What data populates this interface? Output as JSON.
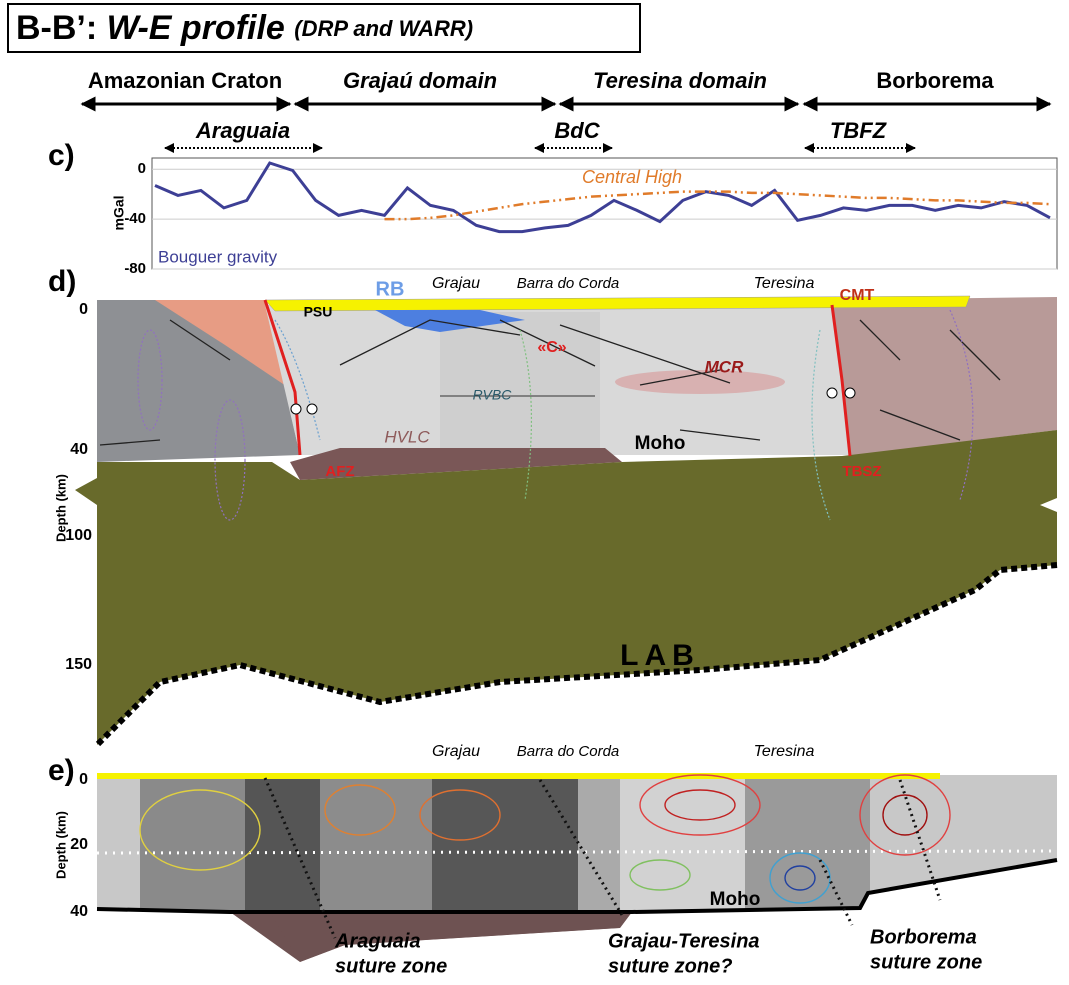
{
  "title": {
    "prefix": "B-B’:",
    "main": "W-E profile",
    "note": "(DRP and WARR)"
  },
  "domains": [
    "Amazonian Craton",
    "Grajaú domain",
    "Teresina domain",
    "Borborema"
  ],
  "zones": [
    "Araguaia",
    "BdC",
    "TBFZ"
  ],
  "panels": {
    "c": "c)",
    "d": "d)",
    "e": "e)"
  },
  "chart_data": {
    "type": "line",
    "ylabel": "mGal",
    "ylim": [
      -80,
      9
    ],
    "yticks": [
      0,
      -40,
      -80
    ],
    "grid": true,
    "series": [
      {
        "name": "Bouguer gravity",
        "color": "#3d3f95",
        "dashed": false,
        "values": [
          -13,
          -21,
          -17,
          -31,
          -25,
          5,
          -1,
          -25,
          -37,
          -33,
          -37,
          -15,
          -29,
          -33,
          -45,
          -50,
          -50,
          -47,
          -45,
          -37,
          -25,
          -33,
          -42,
          -25,
          -18,
          -21,
          -29,
          -17,
          -41,
          -37,
          -31,
          -33,
          -29,
          -29,
          -33,
          -29,
          -31,
          -26,
          -29,
          -39
        ]
      },
      {
        "name": "Central High",
        "color": "#e07b2a",
        "dashed": true,
        "values": [
          null,
          null,
          null,
          null,
          null,
          null,
          null,
          null,
          null,
          null,
          -40,
          -40,
          -39,
          -37,
          -34,
          -31,
          -28,
          -26,
          -24,
          -22,
          -21,
          -20,
          -19,
          -18,
          -18,
          -18,
          -19,
          -19,
          -20,
          -21,
          -22,
          -23,
          -23,
          -24,
          -25,
          -25,
          -26,
          -27,
          -27,
          -28
        ]
      }
    ]
  },
  "section_d": {
    "ylabel": "Depth (km)",
    "ticks": [
      "0",
      "40",
      "100",
      "150"
    ],
    "labels": {
      "psu": "PSU",
      "rb": "RB",
      "grajau": "Grajau",
      "barra": "Barra do Corda",
      "teresina": "Teresina",
      "cmt": "CMT",
      "c": "«C»",
      "mcr": "MCR",
      "rvbc": "RVBC",
      "hvlc": "HVLC",
      "moho": "Moho",
      "afz": "AFZ",
      "tbsz": "TBSZ",
      "lab": "LAB"
    }
  },
  "section_e": {
    "ylabel": "Depth (km)",
    "ticks": [
      "0",
      "20",
      "40"
    ],
    "labels": {
      "grajau": "Grajau",
      "barra": "Barra do Corda",
      "teresina": "Teresina",
      "moho": "Moho"
    },
    "sutures": [
      [
        "Araguaia",
        "suture zone"
      ],
      [
        "Grajau-Teresina",
        "suture zone?"
      ],
      [
        "Borborema",
        "suture zone"
      ]
    ]
  }
}
